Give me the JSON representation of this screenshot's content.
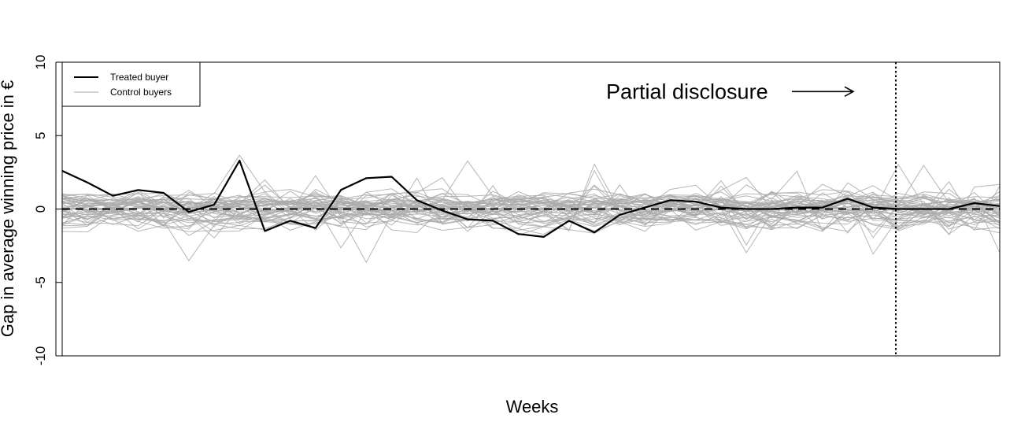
{
  "chart_data": {
    "type": "line",
    "title": "",
    "xlabel": "Weeks",
    "ylabel": "Gap in average winning price in €",
    "ylim": [
      -10,
      10
    ],
    "yticks": [
      "-10",
      "-5",
      "0",
      "5",
      "10"
    ],
    "xlim": [
      1,
      38
    ],
    "x": [
      1,
      2,
      3,
      4,
      5,
      6,
      7,
      8,
      9,
      10,
      11,
      12,
      13,
      14,
      15,
      16,
      17,
      18,
      19,
      20,
      21,
      22,
      23,
      24,
      25,
      26,
      27,
      28,
      29,
      30,
      31,
      32,
      33,
      34,
      35,
      36,
      37,
      38
    ],
    "x_ticks_shown": false,
    "grid": false,
    "legend_position": "top-left",
    "legend": [
      "Treated buyer",
      "Control buyers"
    ],
    "series": [
      {
        "name": "Treated buyer",
        "color": "#000000",
        "values": [
          2.6,
          1.8,
          0.9,
          1.3,
          1.1,
          -0.2,
          0.3,
          3.3,
          -1.5,
          -0.8,
          -1.3,
          1.3,
          2.1,
          2.2,
          0.6,
          -0.1,
          -0.7,
          -0.8,
          -1.7,
          -1.9,
          -0.8,
          -1.6,
          -0.4,
          0.1,
          0.6,
          0.5,
          0.1,
          0.0,
          0.0,
          0.1,
          0.1,
          0.7,
          0.1,
          0.0,
          0.0,
          0.0,
          0.4,
          0.2
        ]
      }
    ],
    "control_series_note": "Control buyers",
    "control_color": "#aaaaaa",
    "reference_line": {
      "y": 0,
      "style": "dashed"
    },
    "annotations": [
      {
        "text": "Partial disclosure",
        "arrow": "right",
        "x": 33.2,
        "y": 8.0
      }
    ],
    "vertical_marker": {
      "x": 33.9,
      "style": "dotted"
    }
  }
}
